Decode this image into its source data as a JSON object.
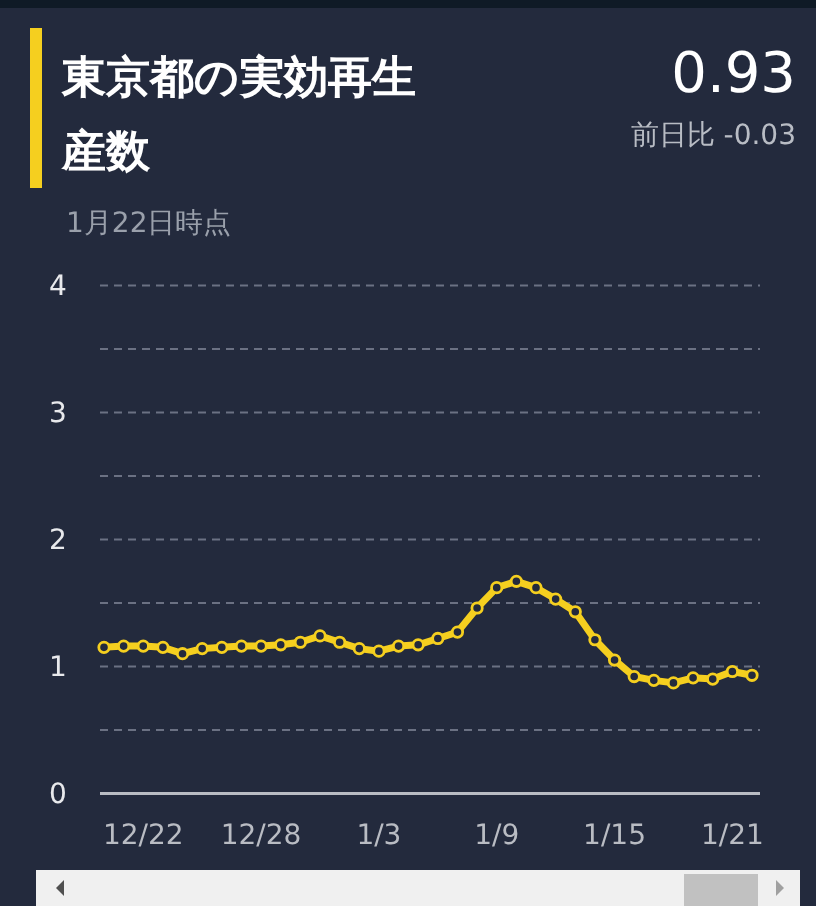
{
  "chart_data": {
    "type": "line",
    "title": "東京都の実効再生産数",
    "subtitle": "1月22日時点",
    "annotations": [
      "0.93",
      "前日比 -0.03"
    ],
    "categories": [
      null,
      null,
      "12/22",
      null,
      null,
      null,
      null,
      null,
      "12/28",
      null,
      null,
      null,
      null,
      null,
      "1/3",
      null,
      null,
      null,
      null,
      null,
      "1/9",
      null,
      null,
      null,
      null,
      null,
      "1/15",
      null,
      null,
      null,
      null,
      null,
      "1/21",
      null
    ],
    "series": [
      {
        "color": "#f5cf1f",
        "values": [
          1.15,
          1.16,
          1.16,
          1.15,
          1.1,
          1.14,
          1.15,
          1.16,
          1.16,
          1.17,
          1.19,
          1.24,
          1.19,
          1.14,
          1.12,
          1.16,
          1.17,
          1.22,
          1.27,
          1.46,
          1.62,
          1.67,
          1.62,
          1.53,
          1.43,
          1.21,
          1.05,
          0.92,
          0.89,
          0.87,
          0.91,
          0.9,
          0.96,
          0.93
        ]
      }
    ],
    "ylim": [
      0,
      4
    ],
    "yticks": [
      0,
      {
        "value": 0.5,
        "label": null
      },
      1,
      {
        "value": 1.5,
        "label": null
      },
      2,
      {
        "value": 2.5,
        "label": null
      },
      3,
      {
        "value": 3.5,
        "label": null
      },
      4
    ],
    "grid": "y",
    "marker": "circle",
    "line_style": "solid"
  }
}
